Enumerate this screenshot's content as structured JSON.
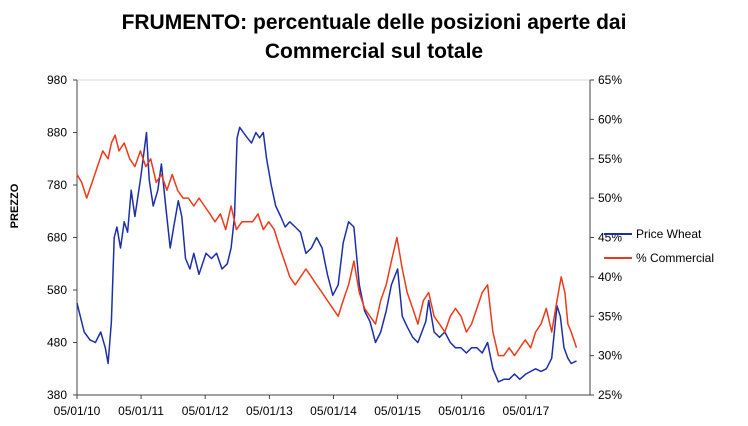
{
  "chart_data": {
    "type": "line",
    "title_line1": "FRUMENTO:  percentuale delle posizioni aperte dai",
    "title_line2": "Commercial sul totale",
    "ylabel": "PREZZO",
    "ylim": [
      380,
      980
    ],
    "y2lim": [
      25,
      65
    ],
    "y_ticks": [
      "380",
      "480",
      "580",
      "680",
      "780",
      "880",
      "980"
    ],
    "y2_ticks": [
      "25%",
      "30%",
      "35%",
      "40%",
      "45%",
      "50%",
      "55%",
      "60%",
      "65%"
    ],
    "x_ticks": [
      "05/01/10",
      "05/01/11",
      "05/01/12",
      "05/01/13",
      "05/01/14",
      "05/01/15",
      "05/01/16",
      "05/01/17"
    ],
    "x_range": [
      "2010-01-05",
      "2018-01-05"
    ],
    "legend_position": "right",
    "series": [
      {
        "name": "Price Wheat",
        "color": "#1c2fa8",
        "axis": "left",
        "points": [
          [
            "2010-01-05",
            555
          ],
          [
            "2010-02-15",
            500
          ],
          [
            "2010-03-20",
            485
          ],
          [
            "2010-04-20",
            480
          ],
          [
            "2010-05-20",
            500
          ],
          [
            "2010-06-15",
            470
          ],
          [
            "2010-07-01",
            440
          ],
          [
            "2010-07-20",
            520
          ],
          [
            "2010-08-05",
            680
          ],
          [
            "2010-08-20",
            700
          ],
          [
            "2010-09-10",
            660
          ],
          [
            "2010-10-01",
            710
          ],
          [
            "2010-10-20",
            690
          ],
          [
            "2010-11-10",
            770
          ],
          [
            "2010-12-01",
            720
          ],
          [
            "2011-01-01",
            790
          ],
          [
            "2011-02-05",
            880
          ],
          [
            "2011-02-20",
            790
          ],
          [
            "2011-03-15",
            740
          ],
          [
            "2011-04-10",
            770
          ],
          [
            "2011-05-01",
            820
          ],
          [
            "2011-05-25",
            740
          ],
          [
            "2011-06-20",
            660
          ],
          [
            "2011-07-10",
            700
          ],
          [
            "2011-08-05",
            750
          ],
          [
            "2011-08-25",
            720
          ],
          [
            "2011-09-15",
            640
          ],
          [
            "2011-10-10",
            620
          ],
          [
            "2011-11-01",
            650
          ],
          [
            "2011-12-01",
            610
          ],
          [
            "2012-01-10",
            650
          ],
          [
            "2012-02-10",
            640
          ],
          [
            "2012-03-10",
            650
          ],
          [
            "2012-04-10",
            620
          ],
          [
            "2012-05-10",
            630
          ],
          [
            "2012-06-01",
            660
          ],
          [
            "2012-06-20",
            720
          ],
          [
            "2012-07-05",
            870
          ],
          [
            "2012-07-20",
            890
          ],
          [
            "2012-08-10",
            880
          ],
          [
            "2012-09-01",
            870
          ],
          [
            "2012-09-25",
            860
          ],
          [
            "2012-10-20",
            880
          ],
          [
            "2012-11-10",
            870
          ],
          [
            "2012-12-01",
            880
          ],
          [
            "2012-12-20",
            830
          ],
          [
            "2013-01-15",
            780
          ],
          [
            "2013-02-10",
            740
          ],
          [
            "2013-03-10",
            720
          ],
          [
            "2013-04-05",
            700
          ],
          [
            "2013-05-01",
            710
          ],
          [
            "2013-06-01",
            700
          ],
          [
            "2013-07-01",
            690
          ],
          [
            "2013-08-01",
            650
          ],
          [
            "2013-09-01",
            660
          ],
          [
            "2013-10-01",
            680
          ],
          [
            "2013-11-01",
            660
          ],
          [
            "2013-12-01",
            610
          ],
          [
            "2014-01-01",
            570
          ],
          [
            "2014-02-01",
            590
          ],
          [
            "2014-03-01",
            670
          ],
          [
            "2014-04-01",
            710
          ],
          [
            "2014-05-01",
            700
          ],
          [
            "2014-06-01",
            590
          ],
          [
            "2014-07-01",
            540
          ],
          [
            "2014-08-01",
            520
          ],
          [
            "2014-09-01",
            480
          ],
          [
            "2014-10-01",
            500
          ],
          [
            "2014-11-01",
            540
          ],
          [
            "2014-12-01",
            590
          ],
          [
            "2015-01-05",
            620
          ],
          [
            "2015-02-01",
            530
          ],
          [
            "2015-03-01",
            510
          ],
          [
            "2015-04-01",
            490
          ],
          [
            "2015-05-01",
            480
          ],
          [
            "2015-06-15",
            520
          ],
          [
            "2015-07-01",
            560
          ],
          [
            "2015-08-01",
            500
          ],
          [
            "2015-09-01",
            490
          ],
          [
            "2015-10-01",
            500
          ],
          [
            "2015-11-01",
            480
          ],
          [
            "2015-12-01",
            470
          ],
          [
            "2016-01-01",
            470
          ],
          [
            "2016-02-01",
            460
          ],
          [
            "2016-03-01",
            470
          ],
          [
            "2016-04-01",
            470
          ],
          [
            "2016-05-01",
            460
          ],
          [
            "2016-06-01",
            480
          ],
          [
            "2016-07-01",
            430
          ],
          [
            "2016-08-01",
            405
          ],
          [
            "2016-09-01",
            410
          ],
          [
            "2016-10-01",
            410
          ],
          [
            "2016-11-01",
            420
          ],
          [
            "2016-12-01",
            410
          ],
          [
            "2017-01-05",
            420
          ],
          [
            "2017-02-01",
            425
          ],
          [
            "2017-03-01",
            430
          ],
          [
            "2017-04-01",
            425
          ],
          [
            "2017-05-01",
            430
          ],
          [
            "2017-06-01",
            450
          ],
          [
            "2017-07-01",
            550
          ],
          [
            "2017-07-20",
            530
          ],
          [
            "2017-08-10",
            470
          ],
          [
            "2017-09-01",
            450
          ],
          [
            "2017-09-20",
            440
          ],
          [
            "2017-10-20",
            445
          ]
        ]
      },
      {
        "name": "% Commercial",
        "color": "#ee3a1a",
        "axis": "right",
        "points": [
          [
            "2010-01-05",
            53
          ],
          [
            "2010-02-01",
            52
          ],
          [
            "2010-03-01",
            50
          ],
          [
            "2010-04-01",
            52
          ],
          [
            "2010-05-01",
            54
          ],
          [
            "2010-06-01",
            56
          ],
          [
            "2010-07-01",
            55
          ],
          [
            "2010-07-20",
            57
          ],
          [
            "2010-08-10",
            58
          ],
          [
            "2010-09-01",
            56
          ],
          [
            "2010-10-01",
            57
          ],
          [
            "2010-11-01",
            55
          ],
          [
            "2010-12-01",
            54
          ],
          [
            "2011-01-01",
            56
          ],
          [
            "2011-02-01",
            54
          ],
          [
            "2011-03-01",
            55
          ],
          [
            "2011-04-01",
            52
          ],
          [
            "2011-05-01",
            53
          ],
          [
            "2011-06-01",
            51
          ],
          [
            "2011-07-01",
            53
          ],
          [
            "2011-08-01",
            51
          ],
          [
            "2011-09-01",
            50
          ],
          [
            "2011-10-01",
            50
          ],
          [
            "2011-11-01",
            49
          ],
          [
            "2011-12-01",
            50
          ],
          [
            "2012-01-01",
            49
          ],
          [
            "2012-02-01",
            48
          ],
          [
            "2012-03-01",
            47
          ],
          [
            "2012-04-01",
            48
          ],
          [
            "2012-05-01",
            46
          ],
          [
            "2012-06-01",
            49
          ],
          [
            "2012-07-01",
            46
          ],
          [
            "2012-08-01",
            47
          ],
          [
            "2012-09-01",
            47
          ],
          [
            "2012-10-01",
            47
          ],
          [
            "2012-11-01",
            48
          ],
          [
            "2012-12-01",
            46
          ],
          [
            "2013-01-01",
            47
          ],
          [
            "2013-02-01",
            46
          ],
          [
            "2013-03-01",
            44
          ],
          [
            "2013-04-01",
            42
          ],
          [
            "2013-05-01",
            40
          ],
          [
            "2013-06-01",
            39
          ],
          [
            "2013-07-01",
            40
          ],
          [
            "2013-08-01",
            41
          ],
          [
            "2013-09-01",
            40
          ],
          [
            "2013-10-01",
            39
          ],
          [
            "2013-11-01",
            38
          ],
          [
            "2013-12-01",
            37
          ],
          [
            "2014-01-01",
            36
          ],
          [
            "2014-02-01",
            35
          ],
          [
            "2014-03-01",
            37
          ],
          [
            "2014-04-01",
            39
          ],
          [
            "2014-05-01",
            42
          ],
          [
            "2014-06-01",
            38
          ],
          [
            "2014-07-01",
            36
          ],
          [
            "2014-08-01",
            35
          ],
          [
            "2014-09-01",
            34
          ],
          [
            "2014-10-01",
            37
          ],
          [
            "2014-11-01",
            39
          ],
          [
            "2014-12-01",
            42
          ],
          [
            "2015-01-01",
            45
          ],
          [
            "2015-02-01",
            41
          ],
          [
            "2015-03-01",
            38
          ],
          [
            "2015-04-01",
            36
          ],
          [
            "2015-05-01",
            34
          ],
          [
            "2015-06-01",
            37
          ],
          [
            "2015-07-01",
            38
          ],
          [
            "2015-08-01",
            35
          ],
          [
            "2015-09-01",
            34
          ],
          [
            "2015-10-01",
            33
          ],
          [
            "2015-11-01",
            35
          ],
          [
            "2015-12-01",
            36
          ],
          [
            "2016-01-01",
            35
          ],
          [
            "2016-02-01",
            33
          ],
          [
            "2016-03-01",
            34
          ],
          [
            "2016-04-01",
            36
          ],
          [
            "2016-05-01",
            38
          ],
          [
            "2016-06-01",
            39
          ],
          [
            "2016-07-01",
            33
          ],
          [
            "2016-08-01",
            30
          ],
          [
            "2016-09-01",
            30
          ],
          [
            "2016-10-01",
            31
          ],
          [
            "2016-11-01",
            30
          ],
          [
            "2016-12-01",
            31
          ],
          [
            "2017-01-01",
            32
          ],
          [
            "2017-02-01",
            31
          ],
          [
            "2017-03-01",
            33
          ],
          [
            "2017-04-01",
            34
          ],
          [
            "2017-05-01",
            36
          ],
          [
            "2017-06-01",
            33
          ],
          [
            "2017-07-01",
            37
          ],
          [
            "2017-07-25",
            40
          ],
          [
            "2017-08-15",
            38
          ],
          [
            "2017-09-01",
            34
          ],
          [
            "2017-09-20",
            33
          ],
          [
            "2017-10-20",
            31
          ]
        ]
      }
    ]
  }
}
